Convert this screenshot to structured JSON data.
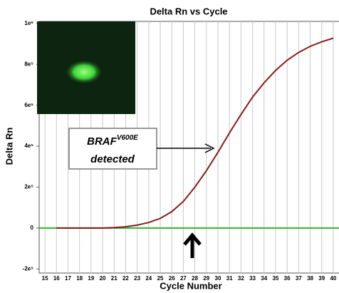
{
  "chart_data": {
    "type": "line",
    "title": "Delta Rn vs Cycle",
    "x_label": "Cycle Number",
    "y_label": "Delta Rn",
    "x": [
      16,
      17,
      18,
      19,
      20,
      21,
      22,
      23,
      24,
      25,
      26,
      27,
      28,
      29,
      30,
      31,
      32,
      33,
      34,
      35,
      36,
      37,
      38,
      39,
      40
    ],
    "series": [
      {
        "color": "#8b1a1a",
        "values": [
          0,
          0,
          0,
          0,
          0,
          2000,
          6000,
          14000,
          27000,
          47000,
          80000,
          130000,
          200000,
          280000,
          370000,
          465000,
          555000,
          640000,
          710000,
          770000,
          820000,
          858000,
          888000,
          910000,
          928000
        ]
      }
    ],
    "threshold": 0,
    "threshold_color": "#2db52d",
    "xlim": [
      14.5,
      40.5
    ],
    "ylim": [
      -220000,
      1010000
    ],
    "xticks": [
      15,
      16,
      17,
      18,
      19,
      20,
      21,
      22,
      23,
      24,
      25,
      26,
      27,
      28,
      29,
      30,
      31,
      32,
      33,
      34,
      35,
      36,
      37,
      38,
      39,
      40
    ],
    "yticks": [
      {
        "value": -200000,
        "label": "-2e⁵"
      },
      0,
      {
        "value": 200000,
        "label": "2e⁵"
      },
      {
        "value": 400000,
        "label": "4e⁵"
      },
      {
        "value": 600000,
        "label": "6e⁵"
      },
      {
        "value": 800000,
        "label": "8e⁵"
      },
      {
        "value": 1000000,
        "label": "1e⁶"
      }
    ],
    "grid": true,
    "annotation": {
      "gene": "BRAF",
      "mutation": "V600E",
      "status": "detected"
    }
  }
}
